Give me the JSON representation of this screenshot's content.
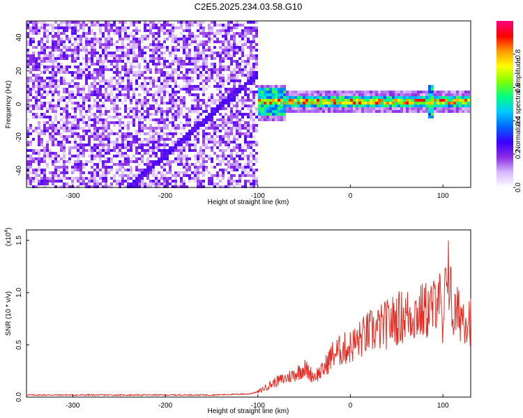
{
  "title": "C2E5.2025.234.03.58.G10",
  "chart_data": [
    {
      "type": "heatmap",
      "name": "spectrogram",
      "xlabel": "Height of straight line (km)",
      "ylabel": "Frequency (Hz)",
      "xlim": [
        -350,
        130
      ],
      "ylim": [
        -50,
        50
      ],
      "xticks": [
        -300,
        -200,
        -100,
        0,
        100
      ],
      "yticks": [
        -40,
        -20,
        0,
        20,
        40
      ],
      "xtick_labels": [
        "-300",
        "-200",
        "-100",
        "0",
        "100"
      ],
      "ytick_labels": [
        "-40",
        "-20",
        "0",
        "20",
        "40"
      ],
      "colorbar": {
        "label": "Normalized spectral amplitude",
        "range": [
          0.0,
          1.0
        ],
        "ticks": [
          0.0,
          0.2,
          0.4,
          0.6,
          0.8
        ],
        "tick_labels": [
          "0.0",
          "0.2",
          "0.4",
          "0.6",
          "0.8"
        ],
        "colors": [
          "#ffffff",
          "#d8b8ff",
          "#8a2be2",
          "#3a00ff",
          "#0066ff",
          "#00ccff",
          "#00ff80",
          "#80ff00",
          "#ffff00",
          "#ff9900",
          "#ff0000",
          "#ff0080"
        ]
      },
      "noise_region_x": [
        -350,
        -100
      ],
      "noise_amplitude_range": [
        0.05,
        0.25
      ],
      "diagonal_trace": {
        "x": [
          -240,
          -100
        ],
        "y": [
          -50,
          18
        ],
        "amplitude": 0.22
      },
      "carrier_band": {
        "x": [
          -100,
          130
        ],
        "y": [
          -2,
          6
        ],
        "center_freq": 1.5,
        "peak_amplitude": 0.95
      },
      "spike_at_x": 88
    },
    {
      "type": "line",
      "name": "snr",
      "xlabel": "Height of straight line (km)",
      "ylabel": "SNR (10 * v/v)",
      "exponent_label": "(x10",
      "exponent_power": "4",
      "exponent_close": ")",
      "xlim": [
        -350,
        130
      ],
      "ylim": [
        0,
        1.6
      ],
      "xticks": [
        -300,
        -200,
        -100,
        0,
        100
      ],
      "yticks": [
        0,
        0.5,
        1.0,
        1.5
      ],
      "xtick_labels": [
        "-300",
        "-200",
        "-100",
        "0",
        "100"
      ],
      "ytick_labels": [
        "0.0",
        "0.5",
        "1.0",
        "1.5"
      ],
      "series": [
        {
          "name": "SNR",
          "color": "#e8291f",
          "x": [
            -350,
            -300,
            -250,
            -200,
            -150,
            -110,
            -100,
            -90,
            -80,
            -70,
            -60,
            -50,
            -40,
            -30,
            -20,
            -10,
            0,
            10,
            20,
            30,
            40,
            50,
            60,
            70,
            80,
            90,
            95,
            100,
            105,
            110,
            120,
            130
          ],
          "values": [
            0.02,
            0.02,
            0.02,
            0.02,
            0.02,
            0.03,
            0.05,
            0.1,
            0.15,
            0.18,
            0.22,
            0.28,
            0.2,
            0.25,
            0.4,
            0.45,
            0.48,
            0.55,
            0.62,
            0.65,
            0.7,
            0.75,
            0.78,
            0.8,
            0.82,
            0.85,
            1.1,
            0.55,
            1.4,
            0.78,
            0.8,
            0.75
          ]
        }
      ]
    }
  ]
}
